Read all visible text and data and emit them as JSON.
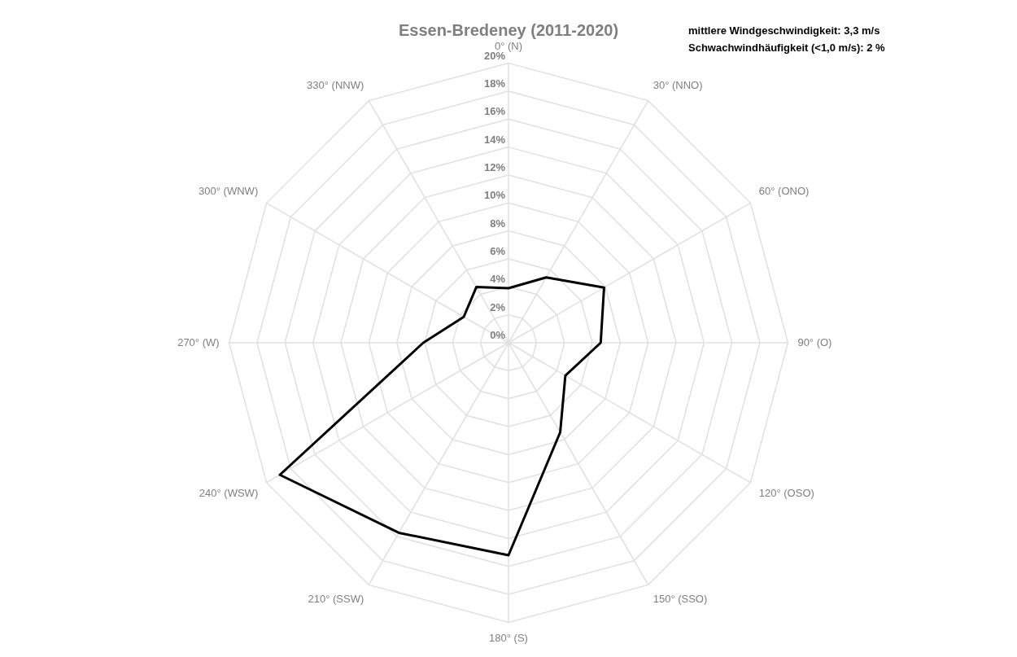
{
  "chart_data": {
    "type": "radar",
    "title": "Essen-Bredeney (2011-2020)",
    "annotations": [
      "mittlere Windgeschwindigkeit: 3,3 m/s",
      "Schwachwindhäufigkeit (<1,0 m/s): 2 %"
    ],
    "categories": [
      "0° (N)",
      "30° (NNO)",
      "60° (ONO)",
      "90° (O)",
      "120° (OSO)",
      "150° (SSO)",
      "180° (S)",
      "210° (SSW)",
      "240° (WSW)",
      "270° (W)",
      "300° (WNW)",
      "330° (NNW)"
    ],
    "series": [
      {
        "color": "#000000",
        "values": [
          3.9,
          5.4,
          7.9,
          6.6,
          4.7,
          7.4,
          15.2,
          15.7,
          18.9,
          6.1,
          3.7,
          4.6
        ]
      }
    ],
    "ylim": [
      0,
      20
    ],
    "yticks": [
      {
        "value": 0,
        "label": "0%"
      },
      {
        "value": 2,
        "label": "2%"
      },
      {
        "value": 4,
        "label": "4%"
      },
      {
        "value": 6,
        "label": "6%"
      },
      {
        "value": 8,
        "label": "8%"
      },
      {
        "value": 10,
        "label": "10%"
      },
      {
        "value": 12,
        "label": "12%"
      },
      {
        "value": 14,
        "label": "14%"
      },
      {
        "value": 16,
        "label": "16%"
      },
      {
        "value": 18,
        "label": "18%"
      },
      {
        "value": 20,
        "label": "20%"
      }
    ],
    "grid": true,
    "legend": false,
    "marker": "none",
    "line_style": "solid"
  }
}
